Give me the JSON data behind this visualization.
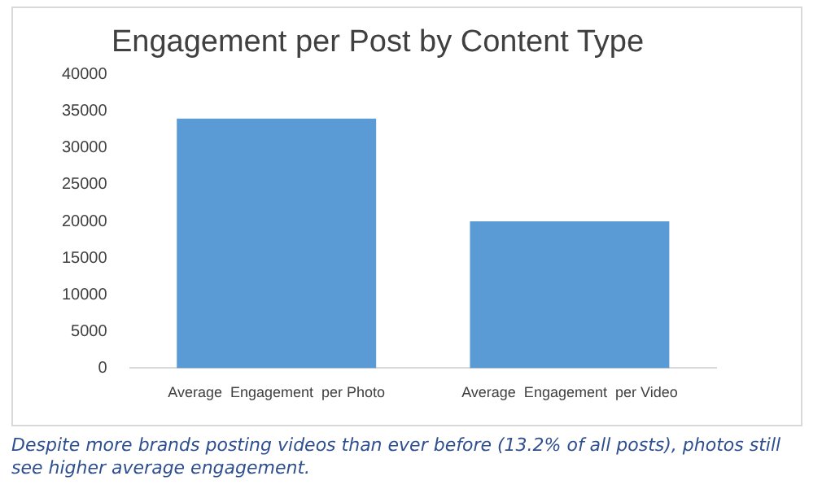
{
  "chart_data": {
    "type": "bar",
    "title": "Engagement per Post by Content Type",
    "categories": [
      "Average  Engagement  per Photo",
      "Average  Engagement  per Video"
    ],
    "values": [
      34000,
      20000
    ],
    "color": "#5b9bd5",
    "ylim": [
      0,
      40000
    ],
    "yticks": [
      0,
      5000,
      10000,
      15000,
      20000,
      25000,
      30000,
      35000,
      40000
    ],
    "grid": false,
    "annotations": [
      "Despite more brands posting videos than ever before (13.2% of all posts), photos still see higher average engagement."
    ]
  }
}
